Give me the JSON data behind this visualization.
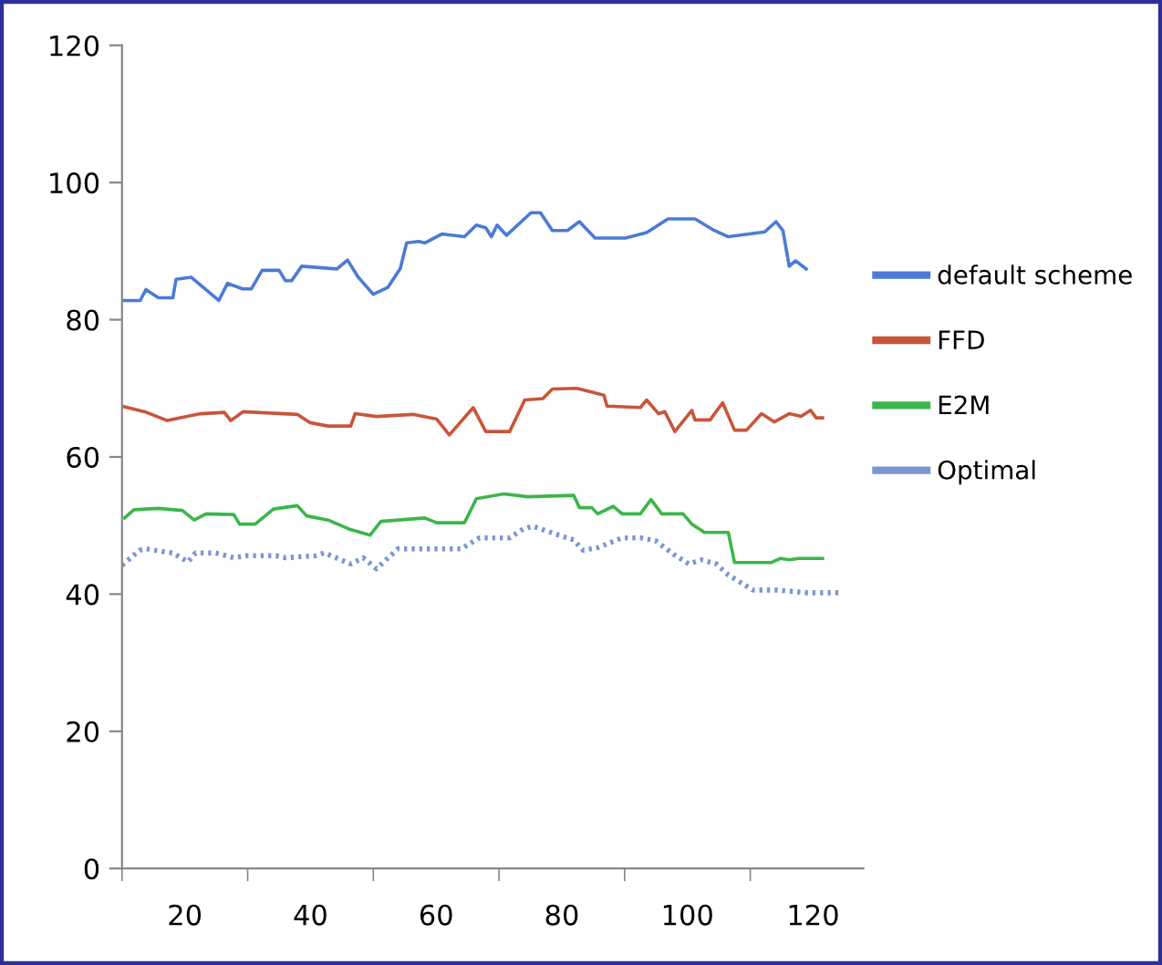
{
  "chart_data": {
    "type": "line",
    "xlim": [
      10,
      128
    ],
    "xticks": [
      {
        "value": 10,
        "label": null
      },
      20,
      {
        "value": 30,
        "label": null
      },
      40,
      {
        "value": 50,
        "label": null
      },
      60,
      {
        "value": 70,
        "label": null
      },
      80,
      {
        "value": 90,
        "label": null
      },
      100,
      {
        "value": 110,
        "label": null
      },
      120
    ],
    "ylim": [
      0,
      120
    ],
    "yticks": [
      0,
      20,
      40,
      60,
      80,
      100,
      120
    ],
    "grid": false,
    "legend": "right",
    "marker": "none",
    "series": [
      {
        "name": "default scheme",
        "color": "#4a7bd6",
        "line_style": "solid",
        "x": [
          10,
          12.9,
          13.8,
          15.8,
          18.1,
          18.6,
          21,
          25.4,
          26.8,
          29.2,
          30.6,
          32.3,
          35,
          36,
          37,
          38.6,
          44.2,
          45.9,
          47.6,
          50,
          52.3,
          54.3,
          55.3,
          57.2,
          58.2,
          60.9,
          64.5,
          66.4,
          67.9,
          68.8,
          69.7,
          71.2,
          75.1,
          76.6,
          78.5,
          80.9,
          82.8,
          85.3,
          90.1,
          93.5,
          96.9,
          101.2,
          104.1,
          106.5,
          112.3,
          114.1,
          115.2,
          116.2,
          117.2,
          118.9
        ],
        "values": [
          82.8,
          82.8,
          84.4,
          83.2,
          83.2,
          85.9,
          86.2,
          82.8,
          85.3,
          84.5,
          84.5,
          87.2,
          87.2,
          85.7,
          85.7,
          87.8,
          87.4,
          88.7,
          86.2,
          83.7,
          84.7,
          87.5,
          91.2,
          91.4,
          91.2,
          92.5,
          92.1,
          93.8,
          93.4,
          92.1,
          93.8,
          92.3,
          95.6,
          95.6,
          93.0,
          93.0,
          94.3,
          91.9,
          91.9,
          92.7,
          94.7,
          94.7,
          93.1,
          92.1,
          92.8,
          94.3,
          93.0,
          87.8,
          88.6,
          87.4
        ]
      },
      {
        "name": "FFD",
        "color": "#c9553a",
        "line_style": "solid",
        "x": [
          10,
          13.9,
          17.2,
          22.5,
          26.3,
          27.3,
          29.3,
          37.9,
          39.9,
          42.8,
          46.4,
          47.1,
          50.5,
          56.3,
          60.1,
          62.1,
          65.9,
          67.9,
          71.7,
          74.1,
          77,
          78.5,
          82.4,
          86.7,
          87.2,
          92.5,
          93.5,
          95.4,
          96.4,
          98,
          100.7,
          101.2,
          103.6,
          105.6,
          107.5,
          109.4,
          111.8,
          113.8,
          116.2,
          118.1,
          119.6,
          120.5,
          121.5
        ],
        "values": [
          67.4,
          66.5,
          65.3,
          66.3,
          66.5,
          65.3,
          66.6,
          66.2,
          65.0,
          64.5,
          64.5,
          66.3,
          65.9,
          66.2,
          65.5,
          63.2,
          67.2,
          63.7,
          63.7,
          68.3,
          68.5,
          69.9,
          70.0,
          69.0,
          67.4,
          67.2,
          68.3,
          66.3,
          66.6,
          63.7,
          66.8,
          65.4,
          65.4,
          67.9,
          63.9,
          63.9,
          66.3,
          65.1,
          66.3,
          65.9,
          66.8,
          65.7,
          65.7
        ]
      },
      {
        "name": "E2M",
        "color": "#3cb64a",
        "line_style": "solid",
        "x": [
          10.4,
          11.9,
          15.7,
          19.6,
          21.5,
          23.4,
          27.8,
          28.7,
          31.2,
          34.1,
          37.9,
          39.4,
          42.8,
          46.1,
          49.5,
          51.2,
          58.2,
          60.1,
          64.5,
          66.4,
          70.8,
          74.6,
          81.9,
          82.8,
          84.8,
          85.7,
          88.2,
          89.6,
          92.5,
          94.2,
          95.9,
          99.3,
          100.7,
          102.7,
          106.5,
          107.5,
          113.3,
          114.8,
          116.2,
          117.7,
          121.5
        ],
        "values": [
          51.1,
          52.3,
          52.5,
          52.2,
          50.8,
          51.7,
          51.6,
          50.2,
          50.2,
          52.4,
          52.9,
          51.4,
          50.8,
          49.5,
          48.6,
          50.6,
          51.1,
          50.4,
          50.4,
          53.9,
          54.6,
          54.2,
          54.4,
          52.6,
          52.6,
          51.7,
          52.8,
          51.7,
          51.7,
          53.8,
          51.7,
          51.7,
          50.2,
          49.0,
          49.0,
          44.6,
          44.6,
          45.2,
          45.0,
          45.2,
          45.2
        ]
      },
      {
        "name": "Optimal",
        "color": "#7b96d4",
        "line_style": "dotted",
        "x": [
          10,
          12.8,
          13.8,
          18.1,
          20.5,
          21.7,
          24.9,
          27.8,
          29.8,
          34.5,
          36,
          40.8,
          42.2,
          46.4,
          48.4,
          50.5,
          53.9,
          57.2,
          60.1,
          64,
          66.9,
          69.8,
          71.7,
          73.9,
          75.4,
          78.2,
          81.9,
          83.4,
          85.8,
          89.6,
          92.5,
          94.9,
          97.8,
          100.2,
          102.2,
          104.6,
          106.5,
          110.4,
          114.2,
          119.1,
          124.4
        ],
        "values": [
          44.2,
          46.4,
          46.6,
          46.0,
          44.7,
          46.0,
          46.0,
          45.3,
          45.6,
          45.6,
          45.3,
          45.6,
          46.0,
          44.4,
          45.3,
          43.7,
          46.6,
          46.6,
          46.6,
          46.6,
          48.2,
          48.2,
          48.2,
          49.5,
          49.9,
          49.0,
          47.9,
          46.4,
          46.8,
          48.2,
          48.2,
          47.8,
          45.8,
          44.4,
          45.0,
          44.4,
          42.8,
          40.6,
          40.6,
          40.2,
          40.2
        ]
      }
    ]
  }
}
